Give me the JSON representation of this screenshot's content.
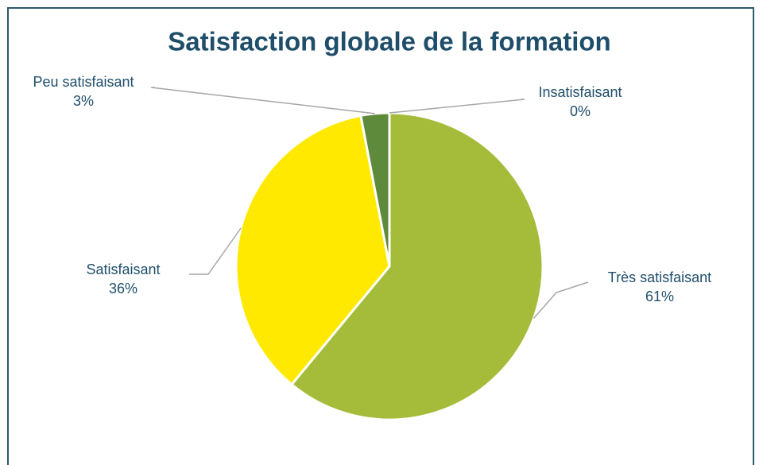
{
  "chart_data": {
    "type": "pie",
    "title": "Satisfaction globale de la formation",
    "categories": [
      "Très satisfaisant",
      "Satisfaisant",
      "Peu satisfaisant",
      "Insatisfaisant"
    ],
    "values": [
      61,
      36,
      3,
      0
    ],
    "value_labels": [
      "61%",
      "36%",
      "3%",
      "0%"
    ],
    "colors": [
      "#a4bc3a",
      "#ffe900",
      "#5e8a3b",
      "#3f6b2a"
    ]
  }
}
